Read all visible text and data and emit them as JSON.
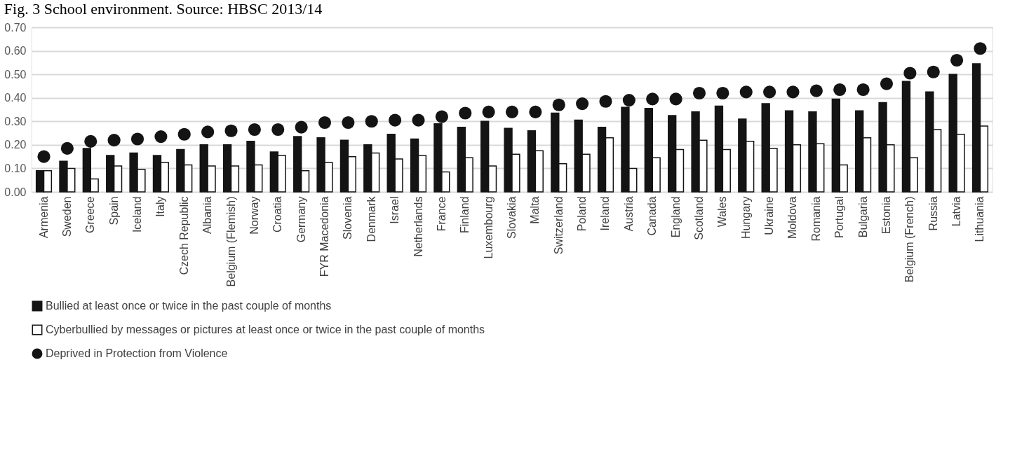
{
  "chart_data": {
    "type": "bar",
    "title": "Fig. 3  School environment. Source: HBSC 2013/14",
    "categories": [
      "Armenia",
      "Sweden",
      "Greece",
      "Spain",
      "Iceland",
      "Italy",
      "Czech Republic",
      "Albania",
      "Belgium (Flemish)",
      "Norway",
      "Croatia",
      "Germany",
      "FYR Macedonia",
      "Slovenia",
      "Denmark",
      "Israel",
      "Netherlands",
      "France",
      "Finland",
      "Luxembourg",
      "Slovakia",
      "Malta",
      "Switzerland",
      "Poland",
      "Ireland",
      "Austria",
      "Canada",
      "England",
      "Scotland",
      "Wales",
      "Hungary",
      "Ukraine",
      "Moldova",
      "Romania",
      "Portugal",
      "Bulgaria",
      "Estonia",
      "Belgium (French)",
      "Russia",
      "Latvia",
      "Lithuania"
    ],
    "series": [
      {
        "name": "Bullied at least once or twice in the past couple of months",
        "color": "#141414",
        "values": [
          0.09,
          0.13,
          0.185,
          0.155,
          0.165,
          0.155,
          0.18,
          0.2,
          0.2,
          0.215,
          0.17,
          0.235,
          0.23,
          0.22,
          0.2,
          0.245,
          0.225,
          0.29,
          0.275,
          0.3,
          0.27,
          0.26,
          0.335,
          0.305,
          0.275,
          0.36,
          0.355,
          0.325,
          0.34,
          0.365,
          0.31,
          0.375,
          0.345,
          0.34,
          0.395,
          0.345,
          0.38,
          0.47,
          0.425,
          0.5,
          0.545
        ]
      },
      {
        "name": "Cyberbullied by messages or pictures at least once or twice in the past couple of months",
        "color": "#ffffff",
        "values": [
          0.09,
          0.1,
          0.055,
          0.11,
          0.095,
          0.125,
          0.115,
          0.11,
          0.11,
          0.115,
          0.155,
          0.09,
          0.125,
          0.15,
          0.165,
          0.14,
          0.155,
          0.085,
          0.145,
          0.11,
          0.16,
          0.175,
          0.12,
          0.16,
          0.23,
          0.1,
          0.145,
          0.18,
          0.22,
          0.18,
          0.215,
          0.185,
          0.2,
          0.205,
          0.115,
          0.23,
          0.2,
          0.145,
          0.265,
          0.245,
          0.28
        ]
      },
      {
        "name": "Deprived in Protection from Violence",
        "type": "scatter",
        "color": "#141414",
        "values": [
          0.15,
          0.185,
          0.215,
          0.22,
          0.225,
          0.235,
          0.245,
          0.255,
          0.26,
          0.265,
          0.265,
          0.275,
          0.295,
          0.295,
          0.3,
          0.305,
          0.305,
          0.32,
          0.335,
          0.34,
          0.34,
          0.34,
          0.37,
          0.375,
          0.385,
          0.39,
          0.395,
          0.395,
          0.42,
          0.42,
          0.425,
          0.425,
          0.425,
          0.43,
          0.435,
          0.435,
          0.46,
          0.505,
          0.51,
          0.56,
          0.61
        ]
      }
    ],
    "ylim": [
      0,
      0.7
    ],
    "yticks": [
      {
        "value": 0,
        "label": "0.00"
      },
      {
        "value": 0.1,
        "label": "0.10"
      },
      {
        "value": 0.2,
        "label": "0.20"
      },
      {
        "value": 0.3,
        "label": "0.30"
      },
      {
        "value": 0.4,
        "label": "0.40"
      },
      {
        "value": 0.5,
        "label": "0.50"
      },
      {
        "value": 0.6,
        "label": "0.60"
      },
      {
        "value": 0.7,
        "label": "0.70"
      }
    ],
    "grid": "y",
    "legend": "bottom",
    "marker": "circle"
  }
}
